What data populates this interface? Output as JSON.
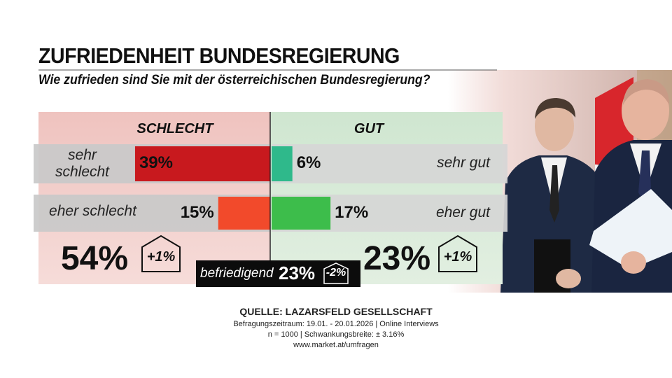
{
  "chart_data": {
    "type": "diverging_bar",
    "title": "ZUFRIEDENHEIT BUNDESREGIERUNG",
    "subtitle": "Wie zufrieden sind Sie mit der österreichischen Bundesregierung?",
    "groups": [
      {
        "name": "SCHLECHT",
        "side": "left",
        "categories": [
          "sehr schlecht",
          "eher schlecht"
        ],
        "values": [
          39,
          15
        ],
        "value_labels": [
          "39%",
          "15%"
        ],
        "colors": [
          "#c8191e",
          "#f24a2b"
        ],
        "total_label": "54%",
        "change_label": "+1%"
      },
      {
        "name": "GUT",
        "side": "right",
        "categories": [
          "sehr gut",
          "eher gut"
        ],
        "values": [
          6,
          17
        ],
        "value_labels": [
          "6%",
          "17%"
        ],
        "colors": [
          "#2fb98b",
          "#3dbd4b"
        ],
        "total_label": "23%",
        "change_label": "+1%"
      }
    ],
    "neutral": {
      "name": "befriedigend",
      "value_label": "23%",
      "change_label": "-2%"
    },
    "source": "QUELLE:  LAZARSFELD GESELLSCHAFT",
    "notes": [
      "Befragungszeitraum:  19.01. - 20.01.2026  | Online Interviews",
      "n = 1000 |  Schwankungsbreite: ± 3.16%",
      "www.market.at/umfragen"
    ]
  }
}
